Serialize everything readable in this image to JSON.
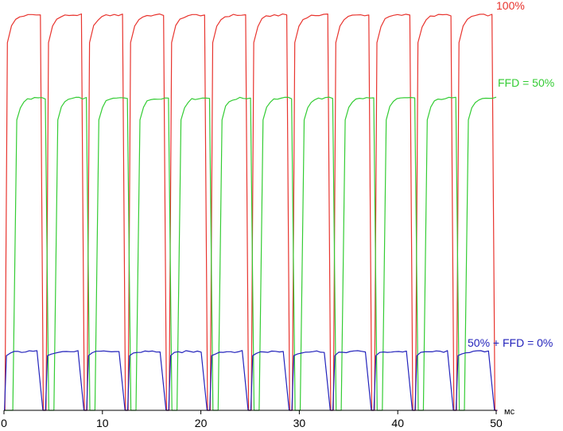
{
  "chart_data": {
    "type": "line",
    "xlabel": "мс",
    "ylabel": "",
    "xlim": [
      0,
      50
    ],
    "ylim": [
      0,
      100
    ],
    "x_ticks": [
      "0",
      "10",
      "20",
      "30",
      "40",
      "50"
    ],
    "x_tick_values": [
      0,
      10,
      20,
      30,
      40,
      50
    ],
    "grid": false,
    "period_ms": 4.17,
    "series": [
      {
        "name": "100%",
        "color": "#e8342e",
        "high_level": 97.5,
        "low_level": 0,
        "high_duration_ms": 3.6,
        "rise_ms": 0.25,
        "fall_ms": 0.3,
        "first_rise_ms": 0.1
      },
      {
        "name": "FFD = 50%",
        "color": "#33cc33",
        "high_level": 77,
        "low_level": 0,
        "high_duration_ms": 3.3,
        "rise_ms": 0.4,
        "fall_ms": 0.35,
        "first_rise_ms": 0.9
      },
      {
        "name": "50% + FFD = 0%",
        "color": "#2222bb",
        "high_level": 14.5,
        "low_level": 0,
        "high_duration_ms": 3.3,
        "rise_ms": 0.2,
        "fall_ms": 0.6,
        "first_rise_ms": 0.05
      }
    ]
  }
}
